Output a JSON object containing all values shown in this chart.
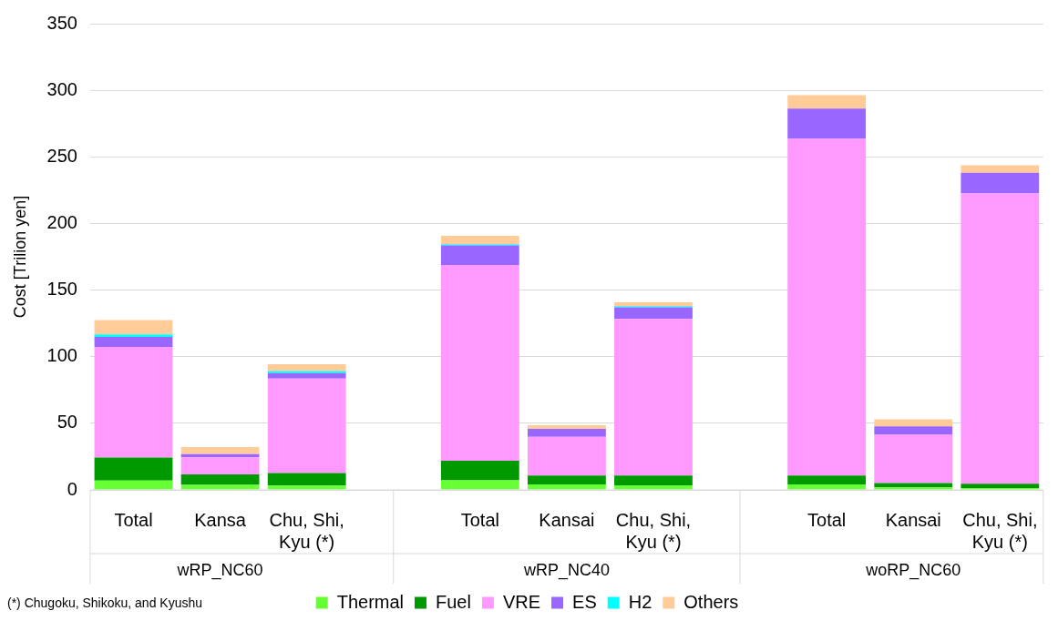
{
  "chart_data": {
    "type": "bar",
    "stacked": true,
    "ylabel": "Cost [Trilion yen]",
    "categories": [
      "Total",
      "Kansa",
      "Chu, Shi,\nKyu (*)",
      null,
      "Total",
      "Kansai",
      "Chu, Shi,\nKyu (*)",
      null,
      "Total",
      "Kansai",
      "Chu, Shi,\nKyu (*)"
    ],
    "series": [
      {
        "name": "Thermal",
        "color": "#66ff33",
        "values": [
          7.0,
          3.8,
          3.2,
          null,
          7.2,
          4.1,
          3.4,
          null,
          4.1,
          1.8,
          1.4
        ]
      },
      {
        "name": "Fuel",
        "color": "#009900",
        "values": [
          17.2,
          7.9,
          9.4,
          null,
          14.7,
          6.7,
          7.4,
          null,
          6.7,
          3.4,
          3.3
        ]
      },
      {
        "name": "VRE",
        "color": "#ff99ff",
        "values": [
          83.2,
          12.7,
          70.9,
          null,
          146.9,
          29.1,
          117.6,
          null,
          252.8,
          36.1,
          217.8
        ]
      },
      {
        "name": "ES",
        "color": "#9966ff",
        "values": [
          7.5,
          2.4,
          4.1,
          null,
          14.7,
          5.9,
          8.6,
          null,
          22.6,
          6.3,
          15.6
        ]
      },
      {
        "name": "H2",
        "color": "#00ffff",
        "values": [
          1.8,
          null,
          1.6,
          null,
          0.9,
          null,
          0.9,
          null,
          0,
          0,
          0
        ]
      },
      {
        "name": "Others",
        "color": "#ffcc99",
        "values": [
          10.8,
          5.3,
          5.1,
          null,
          6.3,
          2.8,
          2.9,
          null,
          10.1,
          5.4,
          5.6
        ]
      }
    ],
    "ylim": [
      0,
      350
    ],
    "yticks": [
      0,
      50,
      100,
      150,
      200,
      250,
      300,
      350
    ],
    "grid": "y",
    "legend": "bottom",
    "annotations": [
      "wRP_NC60",
      "wRP_NC40",
      "woRP_NC60",
      "(*) Chugoku, Shikoku, and Kyushu"
    ]
  }
}
